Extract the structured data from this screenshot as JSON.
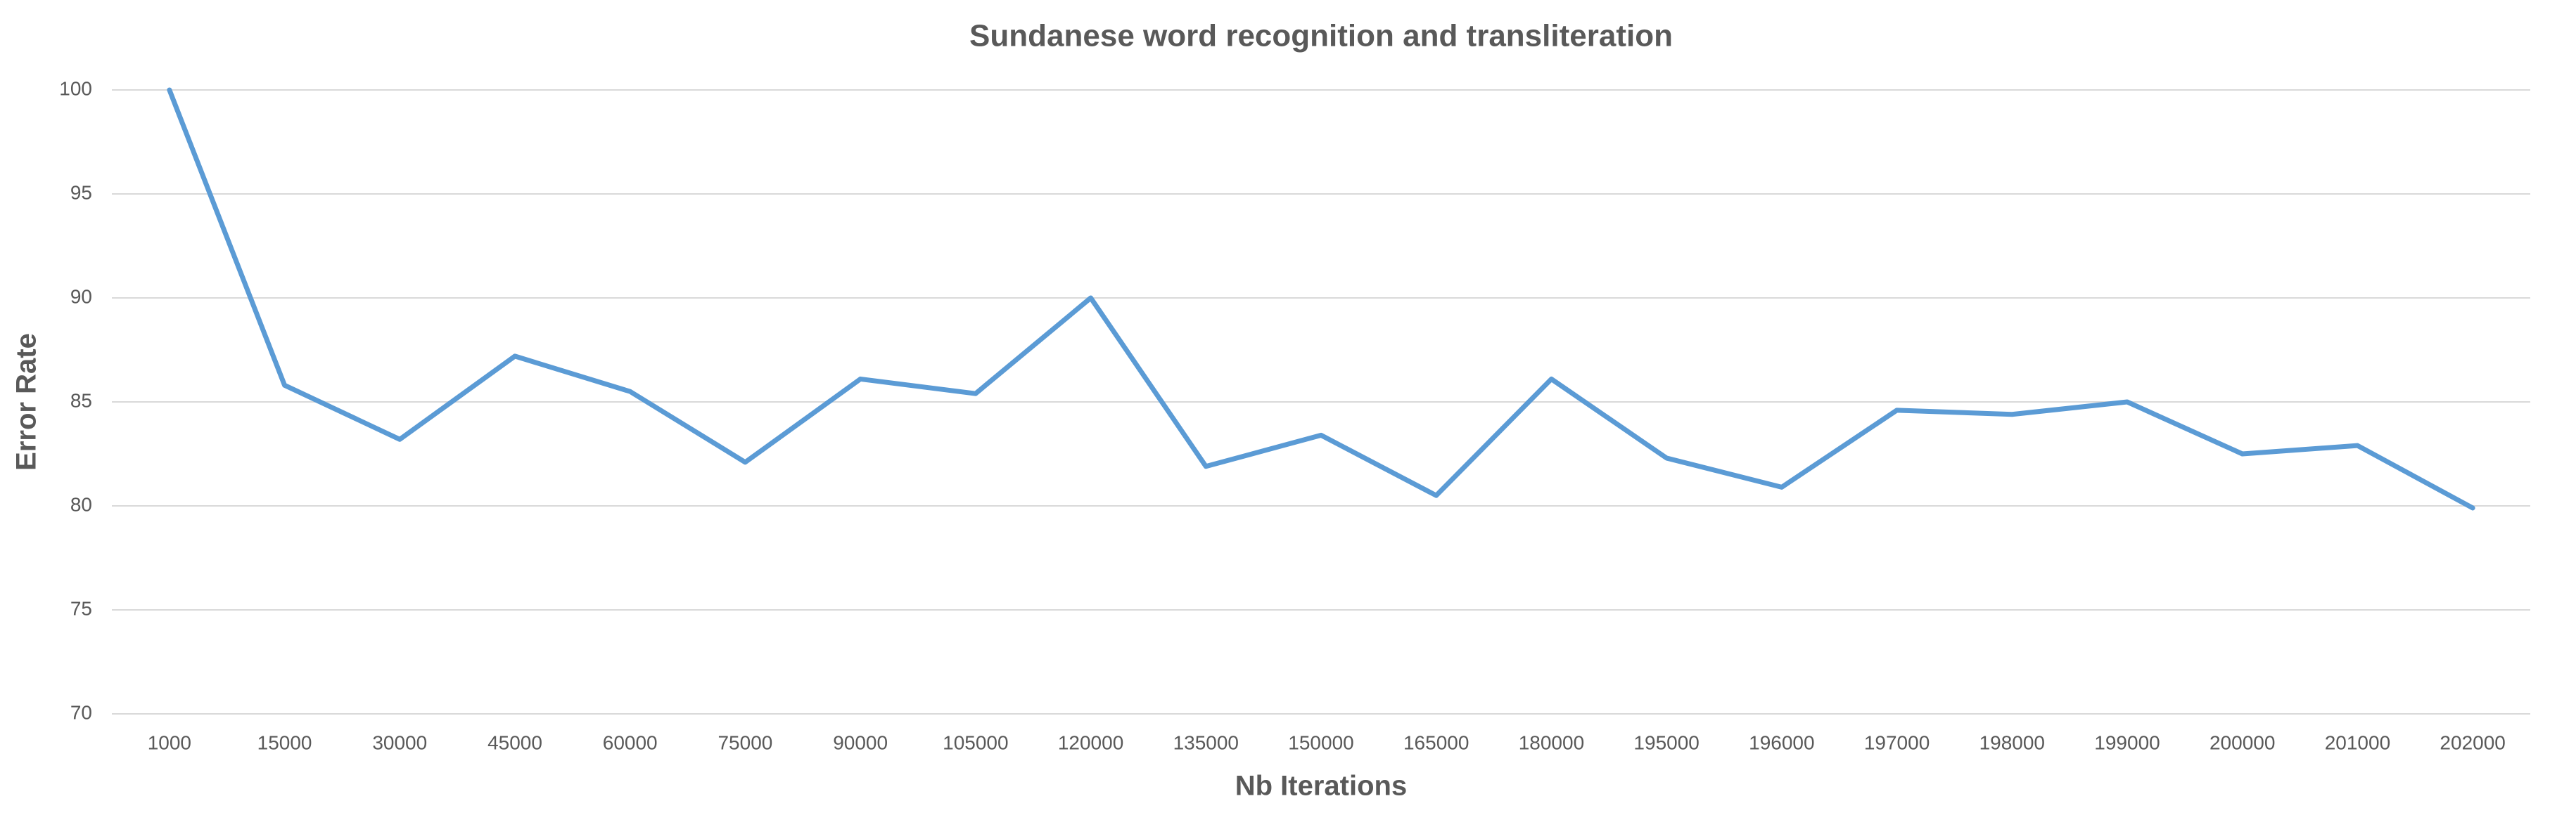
{
  "chart_data": {
    "type": "line",
    "title": "Sundanese word recognition and transliteration",
    "x_label": "Nb Iterations",
    "y_label": "Error Rate",
    "categories": [
      "1000",
      "15000",
      "30000",
      "45000",
      "60000",
      "75000",
      "90000",
      "105000",
      "120000",
      "135000",
      "150000",
      "165000",
      "180000",
      "195000",
      "196000",
      "197000",
      "198000",
      "199000",
      "200000",
      "201000",
      "202000"
    ],
    "values": [
      100,
      85.8,
      83.2,
      87.2,
      85.5,
      82.1,
      86.1,
      85.4,
      90,
      81.9,
      83.4,
      80.5,
      86.1,
      82.3,
      80.9,
      84.6,
      84.4,
      85.0,
      82.5,
      82.9,
      79.9
    ],
    "color": "#5b9bd5",
    "ylim": [
      70,
      100
    ],
    "yticks": [
      70,
      75,
      80,
      85,
      90,
      95,
      100
    ],
    "grid": true
  }
}
